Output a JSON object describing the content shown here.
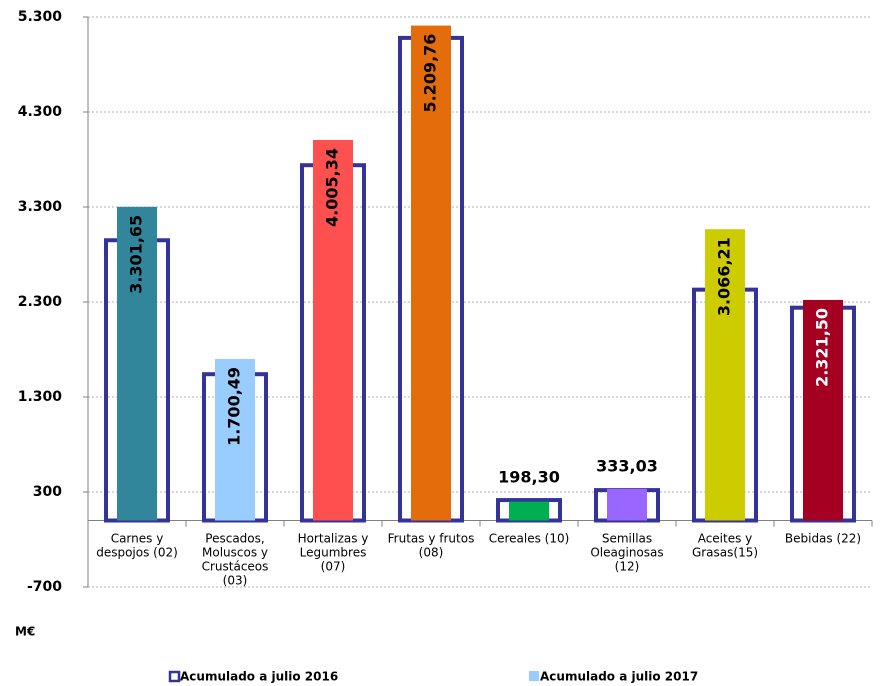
{
  "chart_data": {
    "type": "bar",
    "y_label": "M€",
    "categories": [
      "Carnes y\ndespojos (02)",
      "Pescados,\nMoluscos y\nCrustáceos\n(03)",
      "Hortalizas y\nLegumbres\n(07)",
      "Frutas y frutos\n(08)",
      "Cereales (10)",
      "Semillas\nOleaginosas\n(12)",
      "Aceites y\nGrasas(15)",
      "Bebidas (22)"
    ],
    "series": [
      {
        "name": "Acumulado a julio 2016",
        "color": "#333399",
        "style": "outline",
        "values": [
          2950,
          1540,
          3740,
          5080,
          215,
          320,
          2430,
          2240
        ]
      },
      {
        "name": "Acumulado a julio 2017",
        "color": "#99ccff",
        "style": "filled",
        "colors": [
          "#31869b",
          "#99ccff",
          "#ff5050",
          "#e46c0a",
          "#00b050",
          "#9966ff",
          "#cccc00",
          "#a50021"
        ],
        "values": [
          3301.65,
          1700.49,
          4005.34,
          5209.76,
          198.3,
          333.03,
          3066.21,
          2321.5
        ],
        "value_labels": [
          "3.301,65",
          "1.700,49",
          "4.005,34",
          "5.209,76",
          "198,30",
          "333,03",
          "3.066,21",
          "2.321,50"
        ]
      }
    ],
    "ylim": [
      -700,
      5300
    ],
    "yticks": [
      -700,
      300,
      {
        "value": 1300,
        "label": "1.300"
      },
      {
        "value": 2300,
        "label": "2.300"
      },
      {
        "value": 3300,
        "label": "3.300"
      },
      {
        "value": 4300,
        "label": "4.300"
      },
      {
        "value": 5300,
        "label": "5.300"
      }
    ],
    "grid": true,
    "legend": "bottom"
  }
}
